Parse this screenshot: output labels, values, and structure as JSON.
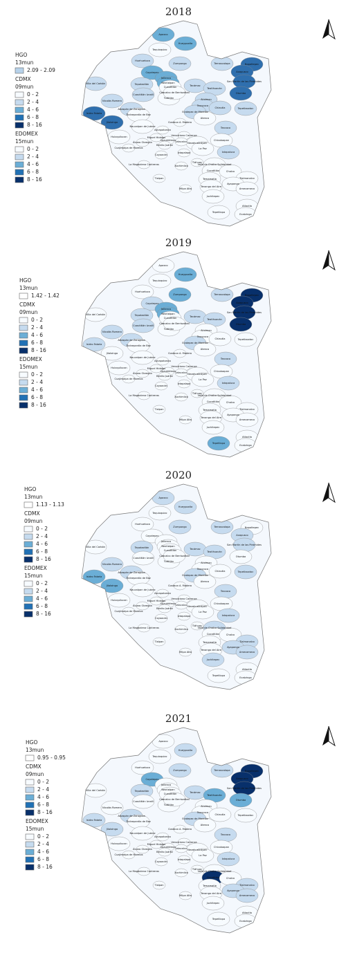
{
  "panels": [
    {
      "title": "2018",
      "legend": [
        {
          "title": "HGO",
          "count": "13mun",
          "classes": [
            {
              "label": "2.09 - 2.09",
              "color": "#b7d2ea"
            }
          ]
        },
        {
          "title": "CDMX",
          "count": "09mun",
          "classes": [
            {
              "label": "0 - 2",
              "color": "#f7fbff"
            },
            {
              "label": "2 - 4",
              "color": "#c6dbef"
            },
            {
              "label": "4 - 6",
              "color": "#6baed6"
            },
            {
              "label": "6 - 8",
              "color": "#2171b5"
            },
            {
              "label": "8 - 16",
              "color": "#08306b"
            }
          ]
        },
        {
          "title": "EDOMEX",
          "count": "15mun",
          "classes": [
            {
              "label": "0 - 2",
              "color": "#f7fbff"
            },
            {
              "label": "2 - 4",
              "color": "#c6dbef"
            },
            {
              "label": "4 - 6",
              "color": "#6baed6"
            },
            {
              "label": "6 - 8",
              "color": "#2171b5"
            },
            {
              "label": "8 - 16",
              "color": "#08306b"
            }
          ]
        }
      ]
    },
    {
      "title": "2019",
      "legend": [
        {
          "title": "HGO",
          "count": "13mun",
          "classes": [
            {
              "label": "1.42 - 1.42",
              "color": "#ffffff"
            }
          ]
        },
        {
          "title": "CDMX",
          "count": "09mun",
          "classes": [
            {
              "label": "0 - 2",
              "color": "#f7fbff"
            },
            {
              "label": "2 - 4",
              "color": "#c6dbef"
            },
            {
              "label": "4 - 6",
              "color": "#6baed6"
            },
            {
              "label": "6 - 8",
              "color": "#2171b5"
            },
            {
              "label": "8 - 16",
              "color": "#08306b"
            }
          ]
        },
        {
          "title": "EDOMEX",
          "count": "15mun",
          "classes": [
            {
              "label": "0 - 2",
              "color": "#f7fbff"
            },
            {
              "label": "2 - 4",
              "color": "#c6dbef"
            },
            {
              "label": "4 - 6",
              "color": "#6baed6"
            },
            {
              "label": "6 - 8",
              "color": "#2171b5"
            },
            {
              "label": "8 - 16",
              "color": "#08306b"
            }
          ]
        }
      ]
    },
    {
      "title": "2020",
      "legend": [
        {
          "title": "HGO",
          "count": "13mun",
          "classes": [
            {
              "label": "1.13 - 1.13",
              "color": "#ffffff"
            }
          ]
        },
        {
          "title": "CDMX",
          "count": "09mun",
          "classes": [
            {
              "label": "0 - 2",
              "color": "#f7fbff"
            },
            {
              "label": "2 - 4",
              "color": "#c6dbef"
            },
            {
              "label": "4 - 6",
              "color": "#6baed6"
            },
            {
              "label": "6 - 8",
              "color": "#2171b5"
            },
            {
              "label": "8 - 16",
              "color": "#08306b"
            }
          ]
        },
        {
          "title": "EDOMEX",
          "count": "15mun",
          "classes": [
            {
              "label": "0 - 2",
              "color": "#f7fbff"
            },
            {
              "label": "2 - 4",
              "color": "#c6dbef"
            },
            {
              "label": "4 - 6",
              "color": "#6baed6"
            },
            {
              "label": "6 - 8",
              "color": "#2171b5"
            },
            {
              "label": "8 - 16",
              "color": "#08306b"
            }
          ]
        }
      ]
    },
    {
      "title": "2021",
      "legend": [
        {
          "title": "HGO",
          "count": "13mun",
          "classes": [
            {
              "label": "0.95 - 0.95",
              "color": "#ffffff"
            }
          ]
        },
        {
          "title": "CDMX",
          "count": "09mun",
          "classes": [
            {
              "label": "0 - 2",
              "color": "#f7fbff"
            },
            {
              "label": "2 - 4",
              "color": "#c6dbef"
            },
            {
              "label": "4 - 6",
              "color": "#6baed6"
            },
            {
              "label": "6 - 8",
              "color": "#2171b5"
            },
            {
              "label": "8 - 16",
              "color": "#08306b"
            }
          ]
        },
        {
          "title": "EDOMEX",
          "count": "15mun",
          "classes": [
            {
              "label": "0 - 2",
              "color": "#f7fbff"
            },
            {
              "label": "2 - 4",
              "color": "#c6dbef"
            },
            {
              "label": "4 - 6",
              "color": "#6baed6"
            },
            {
              "label": "6 - 8",
              "color": "#2171b5"
            },
            {
              "label": "8 - 16",
              "color": "#08306b"
            }
          ]
        }
      ]
    }
  ],
  "municipalities": [
    "Apaxco",
    "Hueypoxtla",
    "Tequixquiac",
    "Temascalapa",
    "Nopaltepec",
    "Huehuetoca",
    "Zumpango",
    "Axapusco",
    "Coyotepec",
    "Jaltenco",
    "Nextlalpan",
    "San Martín de las Pirámides",
    "Tepotzotlán",
    "Tecámac",
    "Teotihuacán",
    "Otumba",
    "Villa del Carbón",
    "Cuautitlán Izcalli",
    "Cuautitlán",
    "Tultitlán",
    "Coacalco de Berriozábal",
    "Acolman",
    "Tezoyuca",
    "Nicolás Romero",
    "Chiautla",
    "Tepetlaoxtoc",
    "Isidro Fabela",
    "Atizapán de Zaragoza",
    "Tlalnepantla de Baz",
    "Ecatepec de Morelos",
    "Atenco",
    "Jilotzingo",
    "Naucalpan de Juárez",
    "Texcoco",
    "Nezahualcóyotl",
    "Chicoloapan",
    "Huixquilucan",
    "La Paz",
    "Ixtapaluca",
    "Valle de Chalco Solidaridad",
    "Cocotitlán",
    "Chalco",
    "Tlalmanalco",
    "Temamatla",
    "Tenango del Aire",
    "Ayapango",
    "Amecameca",
    "Juchitepec",
    "Tepetlixpa",
    "Atlautla",
    "Ecatzingo",
    "Azcapotzalco",
    "Gustavo A. Madero",
    "Miguel Hidalgo",
    "Cuauhtémoc",
    "Venustiano Carranza",
    "Benito Juárez",
    "Iztacalco",
    "Coyoacán",
    "Iztapalapa",
    "Álvaro Obregón",
    "Cuajimalpa de Morelos",
    "La Magdalena Contreras",
    "Tlalpan",
    "Xochimilco",
    "Tláhuac",
    "Milpa Alta"
  ]
}
